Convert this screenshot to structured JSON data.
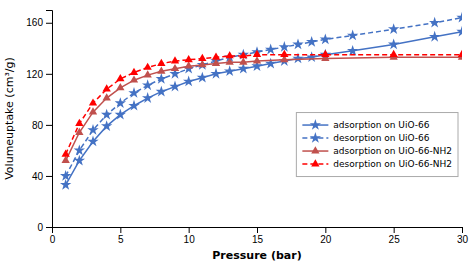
{
  "chart_data": {
    "type": "line",
    "xlabel": "Pressure (bar)",
    "ylabel": "Volumeuptake (cm³/g)",
    "xlim": [
      0,
      30
    ],
    "ylim": [
      0,
      170
    ],
    "xticks": [
      0,
      5,
      10,
      15,
      20,
      25,
      30
    ],
    "yticks": [
      0,
      40,
      80,
      120,
      160
    ],
    "grid": false,
    "legend": "right",
    "series": [
      {
        "name": "adsorption on UiO-66",
        "color": "#4472C4",
        "line_style": "solid",
        "marker": "star",
        "x": [
          1,
          2,
          3,
          4,
          5,
          6,
          7,
          8,
          9,
          10,
          11,
          12,
          13,
          14,
          15,
          16,
          17,
          18,
          19,
          20,
          22,
          25,
          28,
          30
        ],
        "values": [
          33,
          52,
          67,
          79,
          88,
          95,
          101,
          106,
          110,
          114,
          117,
          120,
          122,
          124,
          126,
          128,
          130,
          132,
          133,
          135,
          138,
          143,
          149,
          153
        ]
      },
      {
        "name": "desorption on UiO-66",
        "color": "#4472C4",
        "line_style": "dashed",
        "marker": "star",
        "x": [
          1,
          2,
          3,
          4,
          5,
          6,
          7,
          8,
          9,
          10,
          11,
          12,
          13,
          14,
          15,
          16,
          17,
          18,
          19,
          20,
          22,
          25,
          28,
          30
        ],
        "values": [
          40,
          60,
          76,
          88,
          97,
          105,
          111,
          116,
          120,
          124,
          127,
          130,
          133,
          135,
          137,
          139,
          141,
          143,
          145,
          147,
          150,
          155,
          160,
          164
        ]
      },
      {
        "name": "adsorption on UiO-66-NH2",
        "color": "#C0504D",
        "line_style": "solid",
        "marker": "triangle",
        "x": [
          1,
          2,
          3,
          4,
          5,
          6,
          7,
          8,
          9,
          10,
          11,
          12,
          13,
          14,
          15,
          17,
          20,
          25,
          30
        ],
        "values": [
          52,
          74,
          90,
          101,
          109,
          115,
          119,
          122,
          124,
          126,
          127,
          128,
          129,
          129,
          130,
          131,
          132,
          133,
          133
        ]
      },
      {
        "name": "desorption on UiO-66-NH2",
        "color": "#FF0000",
        "line_style": "dashed",
        "marker": "triangle",
        "x": [
          1,
          2,
          3,
          4,
          5,
          6,
          7,
          8,
          9,
          10,
          11,
          12,
          13,
          14,
          15,
          17,
          20,
          25,
          30
        ],
        "values": [
          57,
          81,
          97,
          108,
          116,
          121,
          125,
          128,
          130,
          131,
          132,
          133,
          134,
          134,
          135,
          135,
          135,
          135,
          135
        ]
      }
    ]
  }
}
